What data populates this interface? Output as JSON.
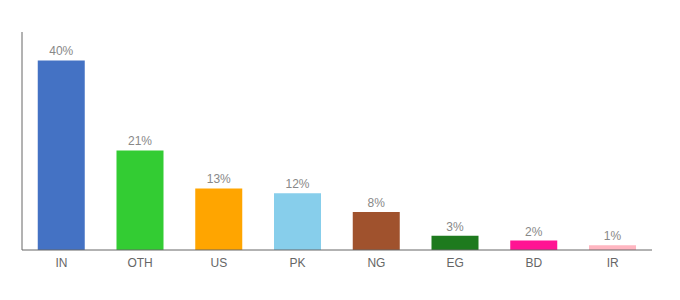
{
  "chart_data": {
    "type": "bar",
    "categories": [
      "IN",
      "OTH",
      "US",
      "PK",
      "NG",
      "EG",
      "BD",
      "IR"
    ],
    "values": [
      40,
      21,
      13,
      12,
      8,
      3,
      2,
      1
    ],
    "value_labels": [
      "40%",
      "21%",
      "13%",
      "12%",
      "8%",
      "3%",
      "2%",
      "1%"
    ],
    "colors": [
      "#4472C4",
      "#33CC33",
      "#FFA500",
      "#87CEEB",
      "#A0522D",
      "#1E7A1E",
      "#FF1493",
      "#FFB6C1"
    ],
    "ylim": [
      0,
      46
    ],
    "data_labels": true,
    "tick_labels": "x"
  }
}
